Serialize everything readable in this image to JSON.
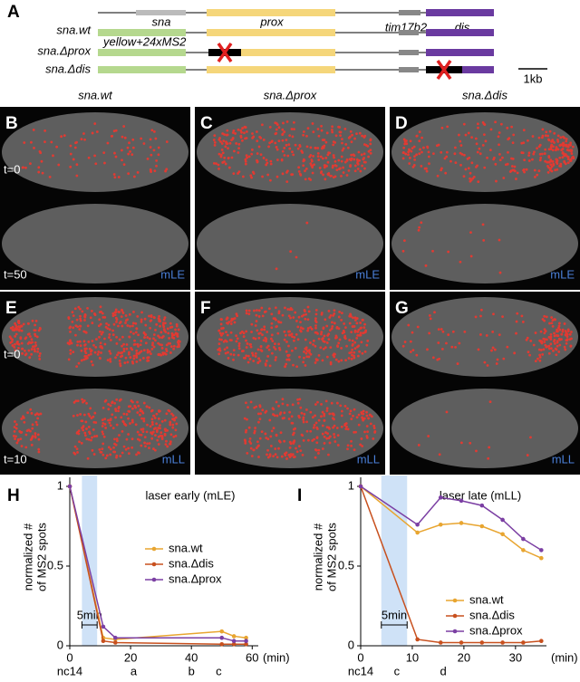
{
  "diagram": {
    "label": "A",
    "genes": {
      "sna": "sna",
      "prox": "prox",
      "tim17b2": "tim17b2",
      "dis": "dis"
    },
    "constructs": [
      "sna.wt",
      "sna.Δprox",
      "sna.Δdis"
    ],
    "reporter": "yellow+24xMS2",
    "scale": "1kb"
  },
  "images": {
    "columns": [
      "sna.wt",
      "sna.Δprox",
      "sna.Δdis"
    ],
    "panels": [
      {
        "label": "B",
        "top": "t=0",
        "bottom": "t=50",
        "mode": "mLE"
      },
      {
        "label": "C",
        "mode": "mLE"
      },
      {
        "label": "D",
        "mode": "mLE"
      },
      {
        "label": "E",
        "top": "t=0",
        "bottom": "t=10",
        "mode": "mLL"
      },
      {
        "label": "F",
        "mode": "mLL"
      },
      {
        "label": "G",
        "mode": "mLL"
      }
    ]
  },
  "chart_data": [
    {
      "type": "line",
      "label": "H",
      "title": "laser early (mLE)",
      "ylabel": [
        "normalized #",
        "of MS2 spots"
      ],
      "xlabel": "(min)",
      "x": [
        0,
        11,
        15,
        50,
        54,
        58
      ],
      "series": [
        {
          "name": "sna.wt",
          "color": "#e8a530",
          "values": [
            1,
            0.05,
            0.04,
            0.09,
            0.06,
            0.05
          ]
        },
        {
          "name": "sna.Δdis",
          "color": "#c8501e",
          "values": [
            1,
            0.03,
            0.02,
            0.01,
            0.01,
            0.01
          ]
        },
        {
          "name": "sna.Δprox",
          "color": "#7b3fa3",
          "values": [
            1,
            0.12,
            0.05,
            0.05,
            0.03,
            0.03
          ]
        }
      ],
      "xlim": [
        0,
        62
      ],
      "ylim": [
        0,
        1
      ],
      "xticks": [
        0,
        20,
        40,
        60
      ],
      "yticks": [
        0,
        0.5,
        1
      ],
      "shade": [
        4,
        9
      ],
      "shade_label": "5min",
      "legend": "center-right",
      "timeline": [
        {
          "x": 0,
          "label": "nc14"
        },
        {
          "x": 21,
          "label": "a"
        },
        {
          "x": 40,
          "label": "b"
        },
        {
          "x": 49,
          "label": "c"
        }
      ]
    },
    {
      "type": "line",
      "label": "I",
      "title": "laser late (mLL)",
      "ylabel": [
        "normalized #",
        "of MS2 spots"
      ],
      "xlabel": "(min)",
      "x": [
        0,
        11,
        15.5,
        19.5,
        23.5,
        27.5,
        31.5,
        35
      ],
      "series": [
        {
          "name": "sna.wt",
          "color": "#e8a530",
          "values": [
            1,
            0.71,
            0.76,
            0.77,
            0.75,
            0.7,
            0.6,
            0.55
          ]
        },
        {
          "name": "sna.Δdis",
          "color": "#c8501e",
          "values": [
            1,
            0.04,
            0.02,
            0.02,
            0.02,
            0.02,
            0.02,
            0.03
          ]
        },
        {
          "name": "sna.Δprox",
          "color": "#7b3fa3",
          "values": [
            1,
            0.76,
            0.93,
            0.91,
            0.88,
            0.79,
            0.67,
            0.6
          ]
        }
      ],
      "xlim": [
        0,
        36
      ],
      "ylim": [
        0,
        1
      ],
      "xticks": [
        0,
        10,
        20,
        30
      ],
      "yticks": [
        0,
        0.5,
        1
      ],
      "shade": [
        4,
        9
      ],
      "shade_label": "5min",
      "legend": "lower-right",
      "timeline": [
        {
          "x": 0,
          "label": "nc14"
        },
        {
          "x": 7,
          "label": "c"
        },
        {
          "x": 16,
          "label": "d"
        }
      ]
    }
  ]
}
